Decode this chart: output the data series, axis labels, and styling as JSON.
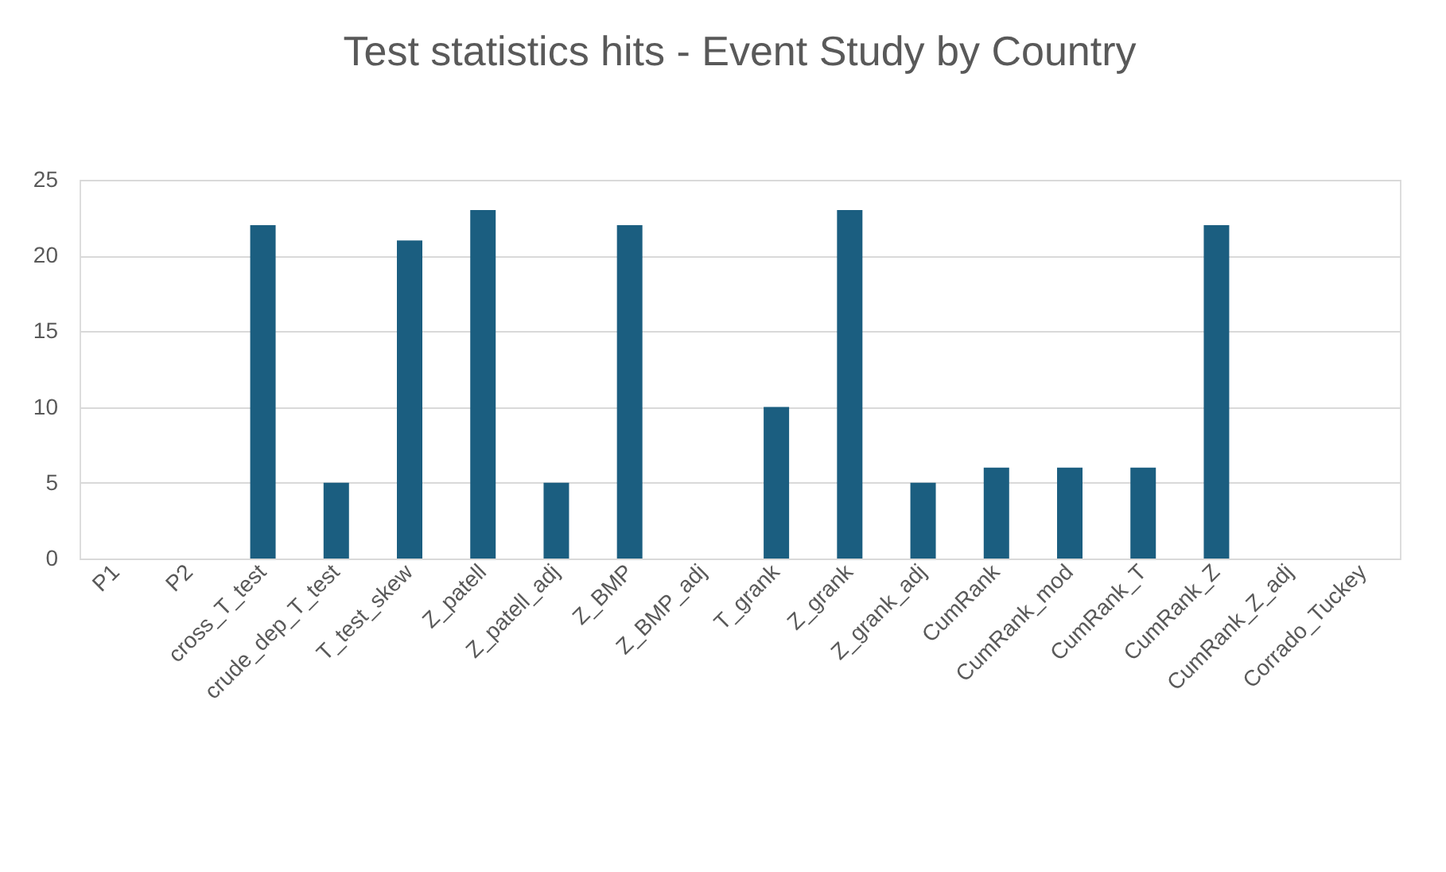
{
  "chart_data": {
    "type": "bar",
    "title": "Test statistics hits - Event Study by Country",
    "categories": [
      "P1",
      "P2",
      "cross_T_test",
      "crude_dep_T_test",
      "T_test_skew",
      "Z_patell",
      "Z_patell_adj",
      "Z_BMP",
      "Z_BMP_adj",
      "T_grank",
      "Z_grank",
      "Z_grank_adj",
      "CumRank",
      "CumRank_mod",
      "CumRank_T",
      "CumRank_Z",
      "CumRank_Z_adj",
      "Corrado_Tuckey"
    ],
    "values": [
      0,
      0,
      22,
      5,
      21,
      23,
      5,
      22,
      0,
      10,
      23,
      5,
      6,
      6,
      6,
      22,
      0,
      0
    ],
    "color": "#1b5e80",
    "ylim": [
      0,
      25
    ],
    "yticks": [
      0,
      5,
      10,
      15,
      20,
      25
    ],
    "grid": "y"
  }
}
